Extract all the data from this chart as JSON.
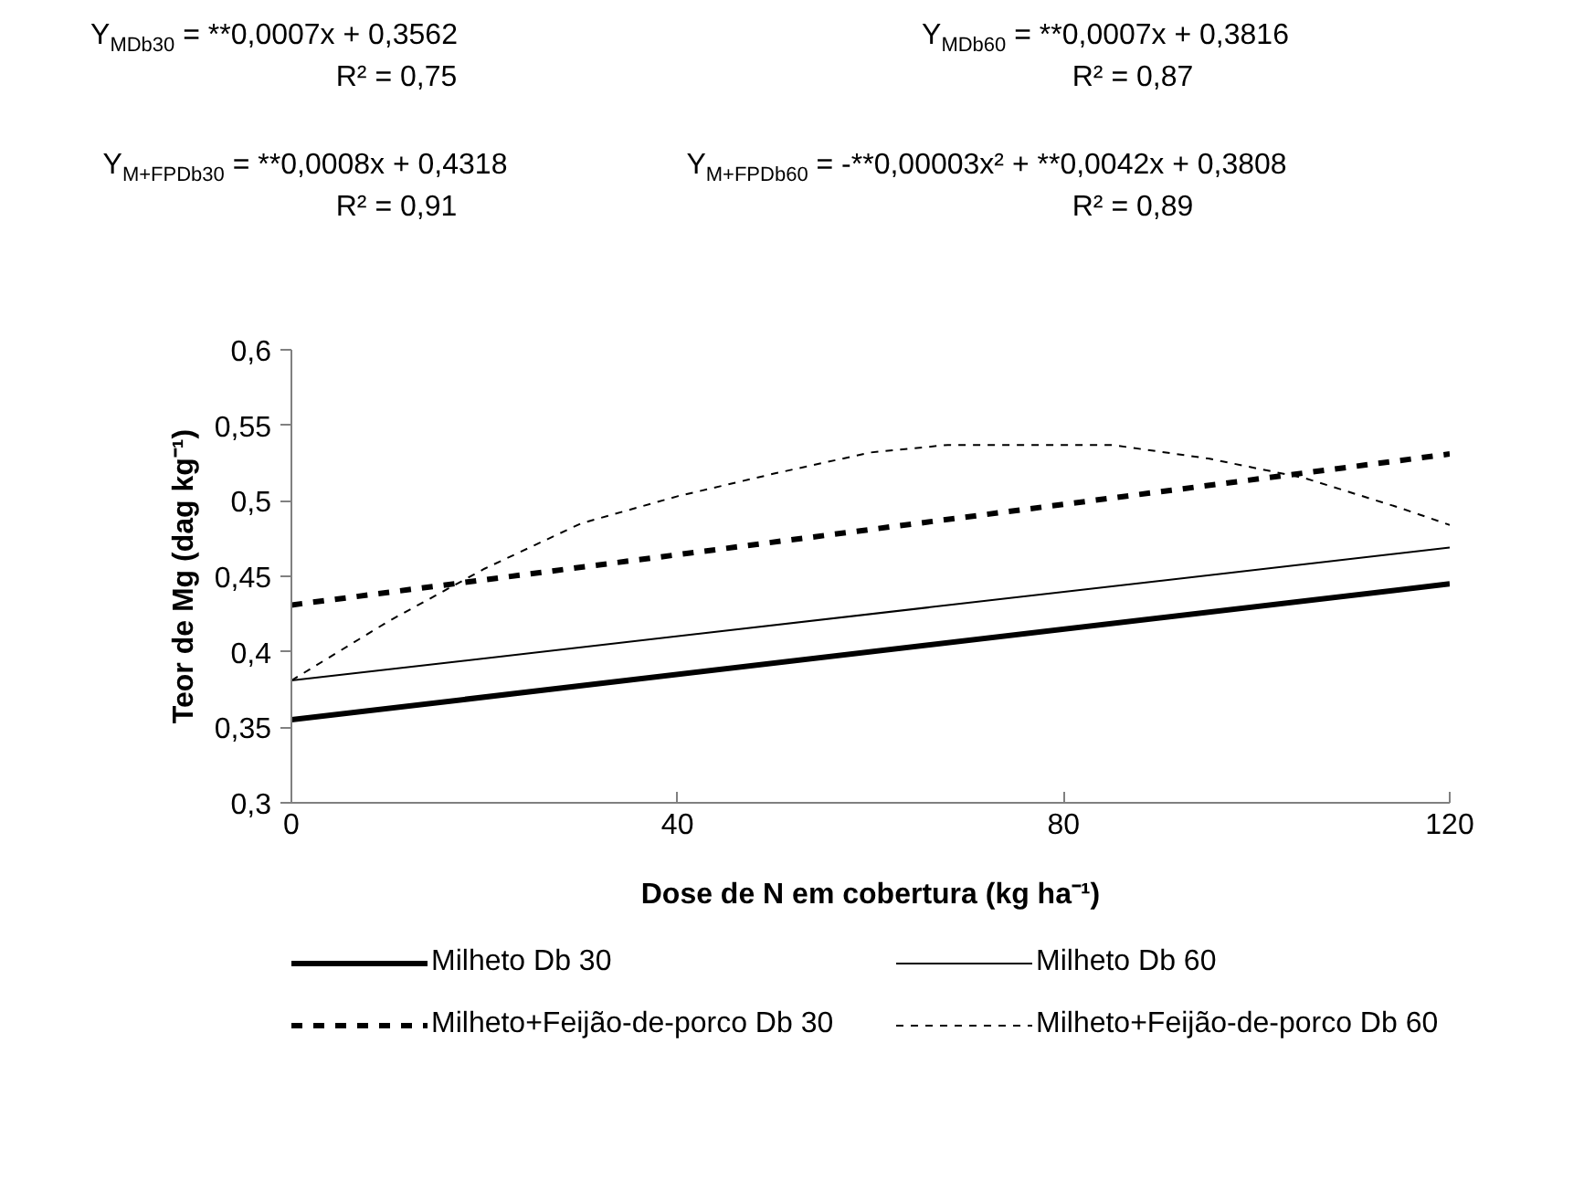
{
  "chart_data": {
    "type": "line",
    "xlabel": "Dose de N em cobertura (kg ha⁻¹)",
    "ylabel": "Teor de Mg (dag kg⁻¹)",
    "annotations": [
      "Y$_{MDb30}$ = **0,0007x + 0,3562",
      "Y$_{MDb60}$ = **0,0007x + 0,3816",
      "R² = 0,75",
      "R² = 0,87",
      "Y$_{M+FPDb30}$ = **0,0008x + 0,4318",
      "Y$_{M+FPDb60}$ = -**0,00003x² + **0,0042x + 0,3808",
      "R² = 0,91",
      "R² = 0,89"
    ],
    "xlim": [
      0,
      120
    ],
    "xticks": [
      0,
      40,
      80,
      120
    ],
    "ylim": [
      0.3,
      0.6
    ],
    "yticks": [
      {
        "value": 0.3,
        "label": "0,3"
      },
      {
        "value": 0.35,
        "label": "0,35"
      },
      {
        "value": 0.4,
        "label": "0,4"
      },
      {
        "value": 0.45,
        "label": "0,45"
      },
      {
        "value": 0.5,
        "label": "0,5"
      },
      {
        "value": 0.55,
        "label": "0,55"
      },
      {
        "value": 0.6,
        "label": "0,6"
      }
    ],
    "grid": false,
    "legend": "bottom",
    "marker": "none",
    "series": [
      {
        "name": "Milheto Db 30",
        "color": "#000000",
        "line_style": "solid",
        "x": [
          0,
          120
        ],
        "values": [
          0.355,
          0.445
        ]
      },
      {
        "name": "Milheto Db 60",
        "color": "#000000",
        "line_style": "solid",
        "x": [
          0,
          120
        ],
        "values": [
          0.381,
          0.469
        ]
      },
      {
        "name": "Milheto+Feijão-de-porco Db 30",
        "color": "#000000",
        "line_style": "dashed",
        "x": [
          0,
          120
        ],
        "values": [
          0.431,
          0.531
        ]
      },
      {
        "name": "Milheto+Feijão-de-porco Db 60",
        "color": "#000000",
        "line_style": "dashed",
        "x": [
          0,
          10,
          20,
          30,
          40,
          50,
          60,
          68,
          85,
          95,
          105,
          115,
          120
        ],
        "values": [
          0.381,
          0.42,
          0.455,
          0.485,
          0.503,
          0.518,
          0.532,
          0.537,
          0.537,
          0.528,
          0.515,
          0.495,
          0.484
        ]
      }
    ]
  }
}
